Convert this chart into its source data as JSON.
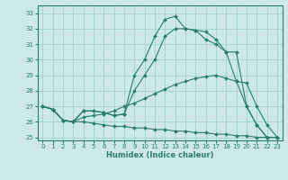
{
  "xlabel": "Humidex (Indice chaleur)",
  "background_color": "#cce8e8",
  "grid_color": "#99cccc",
  "line_color": "#2d7d6e",
  "xlim": [
    -0.5,
    23.5
  ],
  "ylim": [
    24.8,
    33.5
  ],
  "yticks": [
    25,
    26,
    27,
    28,
    29,
    30,
    31,
    32,
    33
  ],
  "xticks": [
    0,
    1,
    2,
    3,
    4,
    5,
    6,
    7,
    8,
    9,
    10,
    11,
    12,
    13,
    14,
    15,
    16,
    17,
    18,
    19,
    20,
    21,
    22,
    23
  ],
  "line1_x": [
    0,
    1,
    2,
    3,
    4,
    5,
    6,
    7,
    8,
    9,
    10,
    11,
    12,
    13,
    14,
    15,
    16,
    17,
    18,
    19,
    20,
    21,
    22,
    23
  ],
  "line1_y": [
    27.0,
    26.8,
    26.1,
    26.0,
    26.7,
    26.7,
    26.6,
    26.4,
    26.5,
    29.0,
    30.0,
    31.5,
    32.6,
    32.8,
    32.0,
    31.9,
    31.8,
    31.3,
    30.5,
    30.5,
    27.0,
    25.8,
    25.0,
    25.0
  ],
  "line2_x": [
    0,
    1,
    2,
    3,
    4,
    5,
    6,
    7,
    8,
    9,
    10,
    11,
    12,
    13,
    14,
    15,
    16,
    17,
    18,
    19,
    20,
    21,
    22,
    23
  ],
  "line2_y": [
    27.0,
    26.8,
    26.1,
    26.0,
    26.7,
    26.7,
    26.6,
    26.4,
    26.5,
    28.0,
    29.0,
    30.0,
    31.5,
    32.0,
    32.0,
    31.9,
    31.3,
    31.0,
    30.5,
    28.6,
    27.0,
    25.8,
    25.0,
    25.0
  ],
  "line3_x": [
    0,
    1,
    2,
    3,
    4,
    5,
    6,
    7,
    8,
    9,
    10,
    11,
    12,
    13,
    14,
    15,
    16,
    17,
    18,
    19,
    20,
    21,
    22,
    23
  ],
  "line3_y": [
    27.0,
    26.8,
    26.1,
    26.0,
    26.3,
    26.4,
    26.5,
    26.7,
    27.0,
    27.2,
    27.5,
    27.8,
    28.1,
    28.4,
    28.6,
    28.8,
    28.9,
    29.0,
    28.8,
    28.6,
    28.5,
    27.0,
    25.8,
    25.0
  ],
  "line4_x": [
    0,
    1,
    2,
    3,
    4,
    5,
    6,
    7,
    8,
    9,
    10,
    11,
    12,
    13,
    14,
    15,
    16,
    17,
    18,
    19,
    20,
    21,
    22,
    23
  ],
  "line4_y": [
    27.0,
    26.8,
    26.1,
    26.0,
    26.0,
    25.9,
    25.8,
    25.7,
    25.7,
    25.6,
    25.6,
    25.5,
    25.5,
    25.4,
    25.4,
    25.3,
    25.3,
    25.2,
    25.2,
    25.1,
    25.1,
    25.0,
    25.0,
    25.0
  ]
}
